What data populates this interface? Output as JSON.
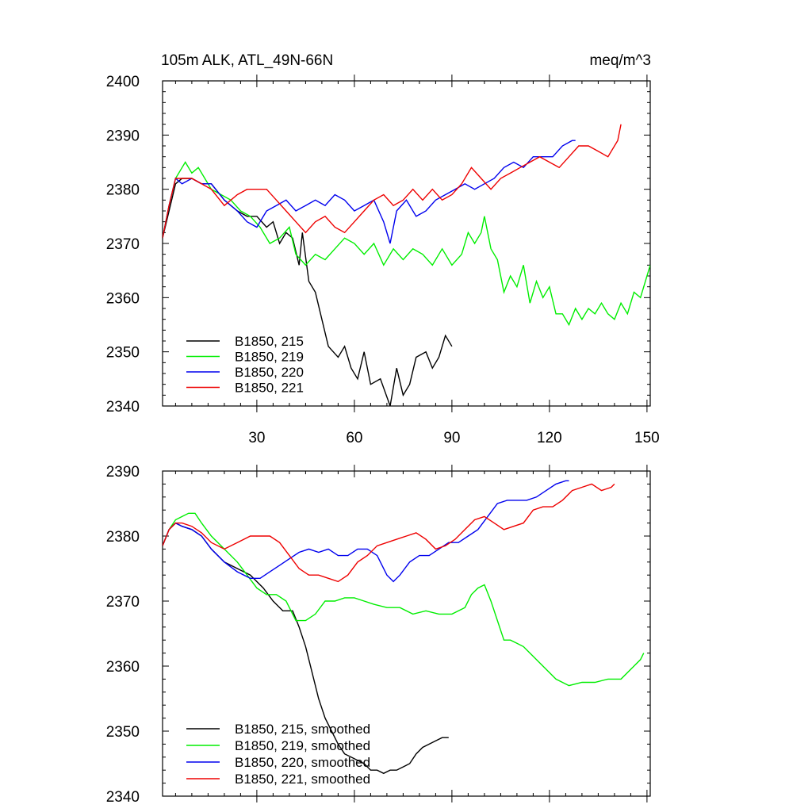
{
  "header": {
    "left_title": "105m ALK, ATL_49N-66N",
    "right_title": "meq/m^3"
  },
  "chart_data": [
    {
      "type": "line",
      "title": "105m ALK, ATL_49N-66N",
      "units": "meq/m^3",
      "xlim": [
        1,
        151
      ],
      "ylim": [
        2340,
        2400
      ],
      "xticks": [
        30,
        60,
        90,
        120,
        150
      ],
      "yticks": [
        2340,
        2350,
        2360,
        2370,
        2380,
        2390,
        2400
      ],
      "xtick_labels": [
        "30",
        "60",
        "90",
        "120",
        "150"
      ],
      "ytick_labels": [
        "2340",
        "2350",
        "2360",
        "2370",
        "2380",
        "2390",
        "2400"
      ],
      "legend": "bottom-left",
      "series": [
        {
          "name": "B1850, 215",
          "color": "#000000",
          "x": [
            1,
            3,
            5,
            7,
            10,
            13,
            16,
            20,
            24,
            27,
            30,
            33,
            35,
            37,
            39,
            41,
            43,
            44,
            46,
            48,
            50,
            52,
            55,
            57,
            59,
            61,
            63,
            65,
            68,
            71,
            73,
            75,
            77,
            79,
            82,
            84,
            86,
            88,
            90
          ],
          "y": [
            2371,
            2376,
            2381,
            2382,
            2382,
            2381,
            2381,
            2378,
            2376,
            2375,
            2375,
            2373,
            2374,
            2370,
            2372,
            2371,
            2366,
            2372,
            2363,
            2361,
            2356,
            2351,
            2349,
            2351,
            2347,
            2345,
            2350,
            2344,
            2345,
            2340,
            2347,
            2342,
            2344,
            2349,
            2350,
            2347,
            2349,
            2353,
            2351
          ]
        },
        {
          "name": "B1850, 219",
          "color": "#00ee00",
          "x": [
            1,
            3,
            5,
            7,
            8,
            10,
            12,
            14,
            16,
            19,
            22,
            25,
            28,
            31,
            34,
            37,
            40,
            42,
            45,
            48,
            51,
            54,
            57,
            60,
            63,
            66,
            69,
            72,
            75,
            78,
            81,
            84,
            87,
            90,
            93,
            95,
            97,
            99,
            100,
            102,
            104,
            106,
            108,
            110,
            112,
            114,
            116,
            118,
            120,
            122,
            124,
            126,
            128,
            130,
            132,
            134,
            136,
            138,
            140,
            142,
            144,
            146,
            148,
            150,
            151
          ],
          "y": [
            2371,
            2377,
            2382,
            2384,
            2385,
            2383,
            2384,
            2382,
            2380,
            2379,
            2378,
            2376,
            2375,
            2373,
            2370,
            2371,
            2373,
            2368,
            2366,
            2368,
            2367,
            2369,
            2371,
            2370,
            2368,
            2370,
            2366,
            2369,
            2367,
            2369,
            2368,
            2366,
            2369,
            2366,
            2368,
            2372,
            2370,
            2372,
            2375,
            2369,
            2367,
            2361,
            2364,
            2362,
            2366,
            2359,
            2363,
            2360,
            2362,
            2357,
            2357,
            2355,
            2358,
            2356,
            2358,
            2357,
            2359,
            2357,
            2356,
            2359,
            2357,
            2361,
            2360,
            2364,
            2366
          ],
          "_end": true
        },
        {
          "name": "B1850, 220",
          "color": "#0000ee",
          "x": [
            1,
            3,
            5,
            7,
            10,
            13,
            16,
            20,
            24,
            27,
            30,
            33,
            36,
            39,
            42,
            45,
            48,
            51,
            54,
            57,
            60,
            63,
            66,
            69,
            71,
            73,
            76,
            79,
            82,
            85,
            88,
            91,
            94,
            97,
            100,
            103,
            106,
            109,
            112,
            115,
            118,
            121,
            124,
            127,
            128
          ],
          "y": [
            2371,
            2377,
            2382,
            2381,
            2382,
            2381,
            2381,
            2378,
            2376,
            2374,
            2373,
            2376,
            2377,
            2378,
            2376,
            2377,
            2378,
            2377,
            2379,
            2378,
            2376,
            2377,
            2378,
            2374,
            2370,
            2376,
            2378,
            2375,
            2376,
            2378,
            2379,
            2380,
            2381,
            2380,
            2381,
            2382,
            2384,
            2385,
            2384,
            2386,
            2386,
            2386,
            2388,
            2389,
            2389
          ]
        },
        {
          "name": "B1850, 221",
          "color": "#ee0000",
          "x": [
            1,
            3,
            5,
            7,
            10,
            13,
            16,
            20,
            24,
            27,
            30,
            33,
            36,
            39,
            42,
            45,
            48,
            51,
            54,
            57,
            60,
            63,
            66,
            69,
            72,
            75,
            78,
            81,
            84,
            87,
            90,
            93,
            96,
            99,
            102,
            105,
            108,
            111,
            114,
            117,
            120,
            123,
            126,
            129,
            132,
            135,
            138,
            141,
            142
          ],
          "y": [
            2371,
            2377,
            2382,
            2382,
            2382,
            2381,
            2380,
            2377,
            2379,
            2380,
            2380,
            2380,
            2378,
            2376,
            2374,
            2372,
            2374,
            2375,
            2373,
            2372,
            2374,
            2376,
            2378,
            2379,
            2377,
            2378,
            2380,
            2378,
            2380,
            2378,
            2379,
            2381,
            2384,
            2382,
            2380,
            2382,
            2383,
            2384,
            2385,
            2386,
            2385,
            2384,
            2386,
            2388,
            2388,
            2387,
            2386,
            2389,
            2392
          ]
        }
      ]
    },
    {
      "type": "line",
      "xlim": [
        1,
        151
      ],
      "ylim": [
        2340,
        2390
      ],
      "yticks": [
        2340,
        2350,
        2360,
        2370,
        2380,
        2390
      ],
      "ytick_labels": [
        "2340",
        "2350",
        "2360",
        "2370",
        "2380",
        "2390"
      ],
      "legend": "bottom-left",
      "series": [
        {
          "name": "B1850, 215, smoothed",
          "color": "#000000",
          "x": [
            1,
            3,
            5,
            7,
            10,
            13,
            16,
            20,
            24,
            28,
            32,
            35,
            38,
            41,
            43,
            45,
            47,
            49,
            51,
            53,
            55,
            57,
            59,
            61,
            63,
            65,
            67,
            69,
            71,
            73,
            75,
            77,
            79,
            81,
            83,
            85,
            87,
            89
          ],
          "y": [
            2378.5,
            2381,
            2382,
            2381.5,
            2381,
            2380,
            2378,
            2376,
            2375,
            2374,
            2372,
            2370,
            2368.5,
            2368.5,
            2366,
            2363,
            2359,
            2355,
            2352,
            2350,
            2348,
            2346.5,
            2346,
            2345.5,
            2345,
            2344,
            2344,
            2343.5,
            2344,
            2344,
            2344.5,
            2345,
            2346.5,
            2347.5,
            2348,
            2348.5,
            2349,
            2349
          ]
        },
        {
          "name": "B1850, 219, smoothed",
          "color": "#00ee00",
          "x": [
            1,
            3,
            5,
            7,
            9,
            11,
            13,
            16,
            20,
            24,
            27,
            30,
            33,
            36,
            39,
            42,
            45,
            48,
            51,
            54,
            57,
            60,
            63,
            66,
            70,
            74,
            78,
            82,
            86,
            90,
            94,
            96,
            98,
            100,
            102,
            104,
            106,
            108,
            110,
            112,
            114,
            118,
            122,
            126,
            130,
            134,
            138,
            142,
            146,
            148,
            149
          ],
          "y": [
            2378.5,
            2381,
            2382.5,
            2383,
            2383.5,
            2383.5,
            2382,
            2380,
            2378,
            2376,
            2374,
            2372,
            2371,
            2371,
            2370,
            2367,
            2367,
            2368,
            2370,
            2370,
            2370.5,
            2370.5,
            2370,
            2369.5,
            2369,
            2369,
            2368,
            2368.5,
            2368,
            2368,
            2369,
            2371,
            2372,
            2372.5,
            2370,
            2367,
            2364,
            2364,
            2363.5,
            2363,
            2362,
            2360,
            2358,
            2357,
            2357.5,
            2357.5,
            2358,
            2358,
            2360,
            2361,
            2362
          ]
        },
        {
          "name": "B1850, 220, smoothed",
          "color": "#0000ee",
          "x": [
            1,
            3,
            5,
            7,
            10,
            13,
            16,
            20,
            24,
            28,
            31,
            34,
            37,
            40,
            43,
            46,
            49,
            52,
            55,
            58,
            61,
            64,
            67,
            70,
            72,
            74,
            77,
            80,
            83,
            86,
            89,
            92,
            95,
            98,
            101,
            104,
            107,
            110,
            113,
            116,
            119,
            122,
            125,
            126
          ],
          "y": [
            2378.5,
            2381,
            2382,
            2381.5,
            2381,
            2380,
            2378,
            2376,
            2374.5,
            2373.5,
            2373.5,
            2374.5,
            2375.5,
            2376.5,
            2377.5,
            2378,
            2377.5,
            2378,
            2377,
            2377,
            2378,
            2378,
            2377,
            2374,
            2373,
            2374,
            2376,
            2377,
            2377,
            2378,
            2379,
            2379,
            2380,
            2381,
            2383,
            2385,
            2385.5,
            2385.5,
            2385.5,
            2386,
            2387,
            2388,
            2388.5,
            2388.5
          ],
          "_end": true
        },
        {
          "name": "B1850, 221, smoothed",
          "color": "#ee0000",
          "x": [
            1,
            3,
            5,
            7,
            10,
            13,
            16,
            20,
            24,
            28,
            31,
            34,
            37,
            40,
            43,
            46,
            49,
            52,
            55,
            58,
            61,
            64,
            67,
            70,
            73,
            76,
            79,
            82,
            85,
            88,
            91,
            94,
            97,
            100,
            103,
            106,
            109,
            112,
            115,
            118,
            121,
            124,
            127,
            130,
            133,
            136,
            139,
            140
          ],
          "y": [
            2378.5,
            2381,
            2382,
            2382,
            2381.5,
            2380.5,
            2379,
            2378,
            2379,
            2380,
            2380,
            2380,
            2379,
            2377,
            2375,
            2374,
            2374,
            2373.5,
            2373,
            2374,
            2376,
            2377,
            2378.5,
            2379,
            2379.5,
            2380,
            2380.5,
            2379.5,
            2378,
            2378.5,
            2379.5,
            2381,
            2382.5,
            2383,
            2382,
            2381,
            2381.5,
            2382,
            2384,
            2384.5,
            2384.5,
            2385.5,
            2387,
            2387.5,
            2388,
            2387,
            2387.5,
            2388
          ]
        }
      ]
    }
  ]
}
